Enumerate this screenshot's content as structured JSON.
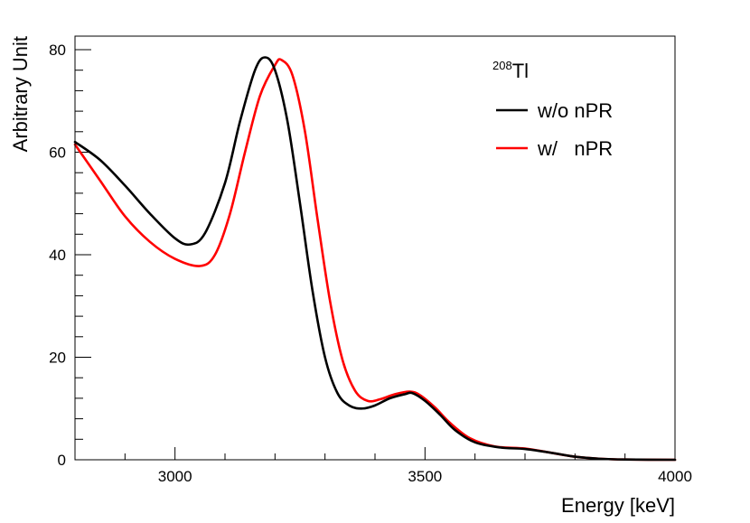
{
  "chart_data": {
    "type": "line",
    "title": "",
    "xlabel": "Energy [keV]",
    "ylabel": "Arbitrary Unit",
    "xlim": [
      2800,
      4000
    ],
    "ylim": [
      0,
      83
    ],
    "x_ticks": [
      3000,
      3500,
      4000
    ],
    "y_ticks": [
      0,
      20,
      40,
      60,
      80
    ],
    "x_tick_labels": [
      "3000",
      "3500",
      "4000"
    ],
    "y_tick_labels": [
      "0",
      "20",
      "40",
      "60",
      "80"
    ],
    "legend": {
      "position": "top-right",
      "header_sup": "208",
      "header": "Tl",
      "entries": [
        "w/o nPR",
        "w/   nPR"
      ]
    },
    "series": [
      {
        "name": "w/o nPR",
        "color": "#000000",
        "points": [
          [
            2800,
            62.0
          ],
          [
            2850,
            58.5
          ],
          [
            2900,
            53.5
          ],
          [
            2950,
            48.0
          ],
          [
            3000,
            43.2
          ],
          [
            3030,
            42.0
          ],
          [
            3060,
            44.2
          ],
          [
            3100,
            54.0
          ],
          [
            3130,
            66.0
          ],
          [
            3160,
            76.0
          ],
          [
            3180,
            78.5
          ],
          [
            3200,
            76.0
          ],
          [
            3225,
            66.0
          ],
          [
            3250,
            50.0
          ],
          [
            3275,
            33.0
          ],
          [
            3300,
            20.0
          ],
          [
            3325,
            13.0
          ],
          [
            3350,
            10.5
          ],
          [
            3375,
            10.0
          ],
          [
            3400,
            10.6
          ],
          [
            3430,
            12.0
          ],
          [
            3460,
            12.8
          ],
          [
            3475,
            13.0
          ],
          [
            3500,
            11.5
          ],
          [
            3530,
            8.8
          ],
          [
            3560,
            5.8
          ],
          [
            3600,
            3.4
          ],
          [
            3650,
            2.4
          ],
          [
            3700,
            2.1
          ],
          [
            3750,
            1.4
          ],
          [
            3800,
            0.6
          ],
          [
            3850,
            0.2
          ],
          [
            3900,
            0.05
          ],
          [
            4000,
            0.0
          ]
        ]
      },
      {
        "name": "w/   nPR",
        "color": "#ff0000",
        "points": [
          [
            2800,
            61.5
          ],
          [
            2850,
            54.5
          ],
          [
            2900,
            47.5
          ],
          [
            2950,
            42.5
          ],
          [
            3000,
            39.2
          ],
          [
            3050,
            37.8
          ],
          [
            3080,
            40.0
          ],
          [
            3110,
            48.0
          ],
          [
            3140,
            60.0
          ],
          [
            3170,
            71.0
          ],
          [
            3200,
            77.0
          ],
          [
            3213,
            78.0
          ],
          [
            3235,
            75.0
          ],
          [
            3260,
            64.0
          ],
          [
            3285,
            47.0
          ],
          [
            3310,
            31.0
          ],
          [
            3335,
            19.5
          ],
          [
            3360,
            13.5
          ],
          [
            3385,
            11.5
          ],
          [
            3410,
            11.8
          ],
          [
            3440,
            12.8
          ],
          [
            3470,
            13.3
          ],
          [
            3490,
            12.6
          ],
          [
            3520,
            10.2
          ],
          [
            3550,
            7.2
          ],
          [
            3590,
            4.2
          ],
          [
            3640,
            2.6
          ],
          [
            3700,
            2.2
          ],
          [
            3750,
            1.4
          ],
          [
            3800,
            0.6
          ],
          [
            3850,
            0.2
          ],
          [
            3900,
            0.05
          ],
          [
            4000,
            0.0
          ]
        ]
      }
    ]
  }
}
